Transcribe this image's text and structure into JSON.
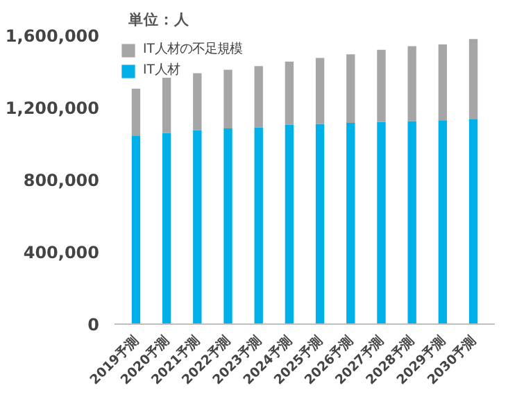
{
  "chart_data": {
    "type": "bar",
    "stacked": true,
    "categories": [
      "2019予測",
      "2020予測",
      "2021予測",
      "2022予測",
      "2023予測",
      "2024予測",
      "2025予測",
      "2026予測",
      "2027予測",
      "2028予測",
      "2029予測",
      "2030予測"
    ],
    "series": [
      {
        "name": "IT人材",
        "color": "#00b0e8",
        "values": [
          1045000,
          1060000,
          1075000,
          1085000,
          1090000,
          1105000,
          1110000,
          1115000,
          1120000,
          1125000,
          1130000,
          1135000
        ]
      },
      {
        "name": "IT人材の不足規模",
        "color": "#a6a6a6",
        "values": [
          260000,
          305000,
          315000,
          325000,
          340000,
          350000,
          365000,
          380000,
          400000,
          415000,
          420000,
          445000
        ]
      }
    ],
    "ylim": [
      0,
      1600000
    ],
    "yticks": [
      {
        "value": 0,
        "label": "0"
      },
      {
        "value": 400000,
        "label": "400,000"
      },
      {
        "value": 800000,
        "label": "800,000"
      },
      {
        "value": 1200000,
        "label": "1,200,000"
      },
      {
        "value": 1600000,
        "label": "1,600,000"
      }
    ],
    "grid": false,
    "legend": "top left",
    "annotations": [
      "単位：人"
    ]
  }
}
